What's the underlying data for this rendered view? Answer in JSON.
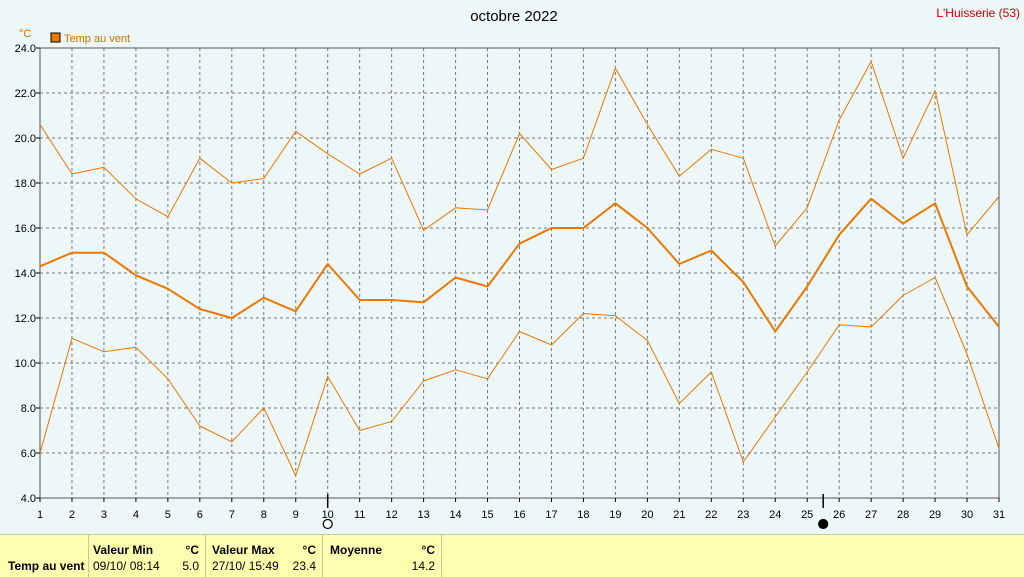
{
  "header": {
    "title": "octobre 2022",
    "station": "L'Huisserie (53)"
  },
  "chart_data": {
    "type": "line",
    "title": "octobre 2022",
    "ylabel": "°C",
    "ylim": [
      4.0,
      24.0
    ],
    "yticks": [
      4.0,
      6.0,
      8.0,
      10.0,
      12.0,
      14.0,
      16.0,
      18.0,
      20.0,
      22.0,
      24.0
    ],
    "x": [
      1,
      2,
      3,
      4,
      5,
      6,
      7,
      8,
      9,
      10,
      11,
      12,
      13,
      14,
      15,
      16,
      17,
      18,
      19,
      20,
      21,
      22,
      23,
      24,
      25,
      26,
      27,
      28,
      29,
      30,
      31
    ],
    "legend": "top-left",
    "grid": true,
    "series": [
      {
        "name": "Temp au vent",
        "role": "mean",
        "color": "#ee7700",
        "values": [
          14.3,
          14.9,
          14.9,
          13.9,
          13.3,
          12.4,
          12.0,
          12.9,
          12.3,
          14.4,
          12.8,
          12.8,
          12.7,
          13.8,
          13.4,
          15.3,
          16.0,
          16.0,
          17.1,
          16.0,
          14.4,
          15.0,
          13.6,
          11.4,
          13.4,
          15.7,
          17.3,
          16.2,
          17.1,
          13.4,
          11.6
        ]
      },
      {
        "role": "max",
        "color": "#ee7700",
        "values": [
          20.6,
          18.4,
          18.7,
          17.3,
          16.5,
          19.1,
          18.0,
          18.2,
          20.3,
          19.3,
          18.4,
          19.1,
          15.9,
          16.9,
          16.8,
          20.2,
          18.6,
          19.1,
          23.1,
          20.6,
          18.3,
          19.5,
          19.1,
          15.2,
          16.9,
          20.8,
          23.4,
          19.1,
          22.1,
          15.7,
          17.4
        ]
      },
      {
        "role": "min",
        "color": "#ee7700",
        "values": [
          6.0,
          11.1,
          10.5,
          10.7,
          9.3,
          7.2,
          6.5,
          8.0,
          5.0,
          9.4,
          7.0,
          7.4,
          9.2,
          9.7,
          9.3,
          11.4,
          10.8,
          12.2,
          12.1,
          11.0,
          8.2,
          9.6,
          5.6,
          7.6,
          9.6,
          11.7,
          11.6,
          13.0,
          13.8,
          10.4,
          6.2
        ]
      }
    ],
    "moon_markers": [
      {
        "x": 10,
        "phase": "full-moon"
      },
      {
        "x": 25.5,
        "phase": "new-moon"
      }
    ]
  },
  "footer": {
    "row_label": "Temp au vent",
    "min": {
      "label": "Valeur Min",
      "unit": "°C",
      "date": "09/10/  08:14",
      "value": "5.0"
    },
    "max": {
      "label": "Valeur Max",
      "unit": "°C",
      "date": "27/10/  15:49",
      "value": "23.4"
    },
    "mean": {
      "label": "Moyenne",
      "unit": "°C",
      "value": "14.2"
    }
  }
}
